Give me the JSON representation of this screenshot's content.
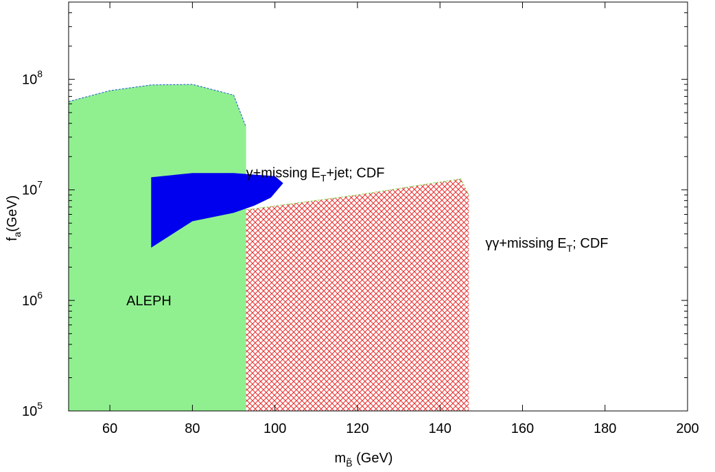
{
  "chart_data": {
    "type": "area",
    "xlabel": {
      "base": "m",
      "sub": "B̃",
      "unit": " (GeV)"
    },
    "ylabel": {
      "base": "f",
      "sub": "a",
      "unit": "(GeV)"
    },
    "xlim": [
      50,
      200
    ],
    "ylim": [
      100000,
      500000000
    ],
    "y_scale": "log",
    "grid": false,
    "x_ticks": [
      "60",
      "80",
      "100",
      "120",
      "140",
      "160",
      "180",
      "200"
    ],
    "x_tick_values": [
      60,
      80,
      100,
      120,
      140,
      160,
      180,
      200
    ],
    "y_ticks": [
      {
        "value": 100000,
        "base": "10",
        "exp": "5"
      },
      {
        "value": 1000000,
        "base": "10",
        "exp": "6"
      },
      {
        "value": 10000000,
        "base": "10",
        "exp": "7"
      },
      {
        "value": 100000000,
        "base": "10",
        "exp": "8"
      }
    ],
    "regions": [
      {
        "id": "aleph",
        "color": "#90f090",
        "edge_color": "#1a55c8",
        "pattern": "solid",
        "points": [
          [
            50,
            63000000
          ],
          [
            60,
            79000000
          ],
          [
            70,
            89000000
          ],
          [
            80,
            90000000
          ],
          [
            90,
            72000000
          ],
          [
            93,
            37000000
          ],
          [
            93,
            100000
          ],
          [
            50,
            100000
          ]
        ]
      },
      {
        "id": "cdf-diphoton",
        "color": "#e83030",
        "edge_color": "#7cd84a",
        "pattern": "crosshatch",
        "points": [
          [
            93,
            6600000
          ],
          [
            120,
            9000000
          ],
          [
            145,
            12600000
          ],
          [
            147,
            9000000
          ],
          [
            147,
            100000
          ],
          [
            93,
            100000
          ]
        ]
      },
      {
        "id": "cdf-photon-jet",
        "color": "#0000ee",
        "pattern": "solid",
        "points": [
          [
            70,
            13000000
          ],
          [
            80,
            14200000
          ],
          [
            90,
            14200000
          ],
          [
            100,
            13300000
          ],
          [
            102,
            11500000
          ],
          [
            99,
            8500000
          ],
          [
            95,
            7200000
          ],
          [
            90,
            6200000
          ],
          [
            80,
            5200000
          ],
          [
            70,
            3000000
          ]
        ]
      }
    ],
    "annotations": [
      {
        "id": "aleph-label",
        "text": "ALEPH",
        "x": 64,
        "y": 900000
      },
      {
        "id": "photon-jet-label",
        "parts": [
          "γ+missing E",
          "T",
          "+jet; CDF"
        ],
        "x": 93,
        "y": 13000000
      },
      {
        "id": "diphoton-label",
        "parts": [
          "γγ+missing E",
          "T",
          "; CDF"
        ],
        "x": 151,
        "y": 3000000
      }
    ]
  }
}
